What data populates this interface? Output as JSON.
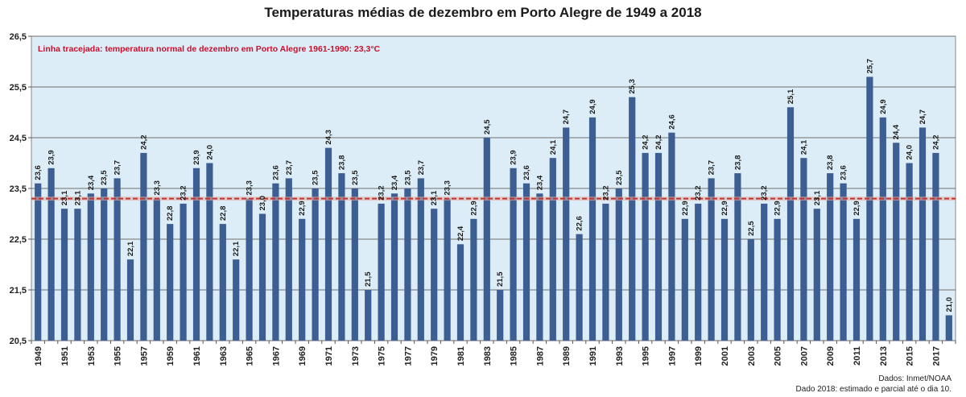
{
  "chart_data": {
    "type": "bar",
    "title": "Temperaturas médias de dezembro em Porto Alegre de 1949 a 2018",
    "annotation": "Linha tracejada: temperatura normal de dezembro em Porto Alegre 1961-1990: 23,3°C",
    "reference_line": 23.3,
    "xlabel": "",
    "ylabel": "",
    "ylim": [
      20.5,
      26.5
    ],
    "yticks": [
      "20,5",
      "21,5",
      "22,5",
      "23,5",
      "24,5",
      "25,5",
      "26,5"
    ],
    "grid": true,
    "categories": [
      "1949",
      "1950",
      "1951",
      "1952",
      "1953",
      "1954",
      "1955",
      "1956",
      "1957",
      "1958",
      "1959",
      "1960",
      "1961",
      "1962",
      "1963",
      "1964",
      "1965",
      "1966",
      "1967",
      "1968",
      "1969",
      "1970",
      "1971",
      "1972",
      "1973",
      "1974",
      "1975",
      "1976",
      "1977",
      "1978",
      "1979",
      "1980",
      "1981",
      "1982",
      "1983",
      "1984",
      "1985",
      "1986",
      "1987",
      "1988",
      "1989",
      "1990",
      "1991",
      "1992",
      "1993",
      "1994",
      "1995",
      "1996",
      "1997",
      "1998",
      "1999",
      "2000",
      "2001",
      "2002",
      "2003",
      "2004",
      "2005",
      "2006",
      "2007",
      "2008",
      "2009",
      "2010",
      "2011",
      "2012",
      "2013",
      "2014",
      "2015",
      "2016",
      "2017",
      "2018"
    ],
    "values": [
      23.6,
      23.9,
      23.1,
      23.1,
      23.4,
      23.5,
      23.7,
      22.1,
      24.2,
      23.3,
      22.8,
      23.2,
      23.9,
      24.0,
      22.8,
      22.1,
      23.3,
      23.0,
      23.6,
      23.7,
      22.9,
      23.5,
      24.3,
      23.8,
      23.5,
      21.5,
      23.2,
      23.4,
      23.5,
      23.7,
      23.1,
      23.3,
      22.4,
      22.9,
      24.5,
      21.5,
      23.9,
      23.6,
      23.4,
      24.1,
      24.7,
      22.6,
      24.9,
      23.2,
      23.5,
      25.3,
      24.2,
      24.2,
      24.6,
      22.9,
      23.2,
      23.7,
      22.9,
      23.8,
      22.5,
      23.2,
      22.9,
      25.1,
      24.1,
      23.1,
      23.8,
      23.6,
      22.9,
      25.7,
      24.9,
      24.4,
      24.0,
      24.7,
      24.2,
      21.0
    ],
    "value_labels": [
      "23,6",
      "23,9",
      "23,1",
      "23,1",
      "23,4",
      "23,5",
      "23,7",
      "22,1",
      "24,2",
      "23,3",
      "22,8",
      "23,2",
      "23,9",
      "24,0",
      "22,8",
      "22,1",
      "23,3",
      "23,0",
      "23,6",
      "23,7",
      "22,9",
      "23,5",
      "24,3",
      "23,8",
      "23,5",
      "21,5",
      "23,2",
      "23,4",
      "23,5",
      "23,7",
      "23,1",
      "23,3",
      "22,4",
      "22,9",
      "24,5",
      "21,5",
      "23,9",
      "23,6",
      "23,4",
      "24,1",
      "24,7",
      "22,6",
      "24,9",
      "23,2",
      "23,5",
      "25,3",
      "24,2",
      "24,2",
      "24,6",
      "22,9",
      "23,2",
      "23,7",
      "22,9",
      "23,8",
      "22,5",
      "23,2",
      "22,9",
      "25,1",
      "24,1",
      "23,1",
      "23,8",
      "23,6",
      "22,9",
      "25,7",
      "24,9",
      "24,4",
      "24,0",
      "24,7",
      "24,2",
      "21,0"
    ],
    "x_tick_labels": [
      "1949",
      "1951",
      "1953",
      "1955",
      "1957",
      "1959",
      "1961",
      "1963",
      "1965",
      "1967",
      "1969",
      "1971",
      "1973",
      "1975",
      "1977",
      "1979",
      "1981",
      "1983",
      "1985",
      "1987",
      "1989",
      "1991",
      "1993",
      "1995",
      "1997",
      "1999",
      "2001",
      "2003",
      "2005",
      "2007",
      "2009",
      "2011",
      "2013",
      "2015",
      "2017"
    ],
    "colors": {
      "bar": "#3c5e92",
      "plot_background": "#ddedf7",
      "grid": "#6e6e6e",
      "reference_line": "#c0362c",
      "annotation": "#c8102e"
    }
  },
  "notes": {
    "source": "Dados: Inmet/NOAA",
    "footnote": "Dado 2018:  estimado e parcial até o dia 10."
  }
}
